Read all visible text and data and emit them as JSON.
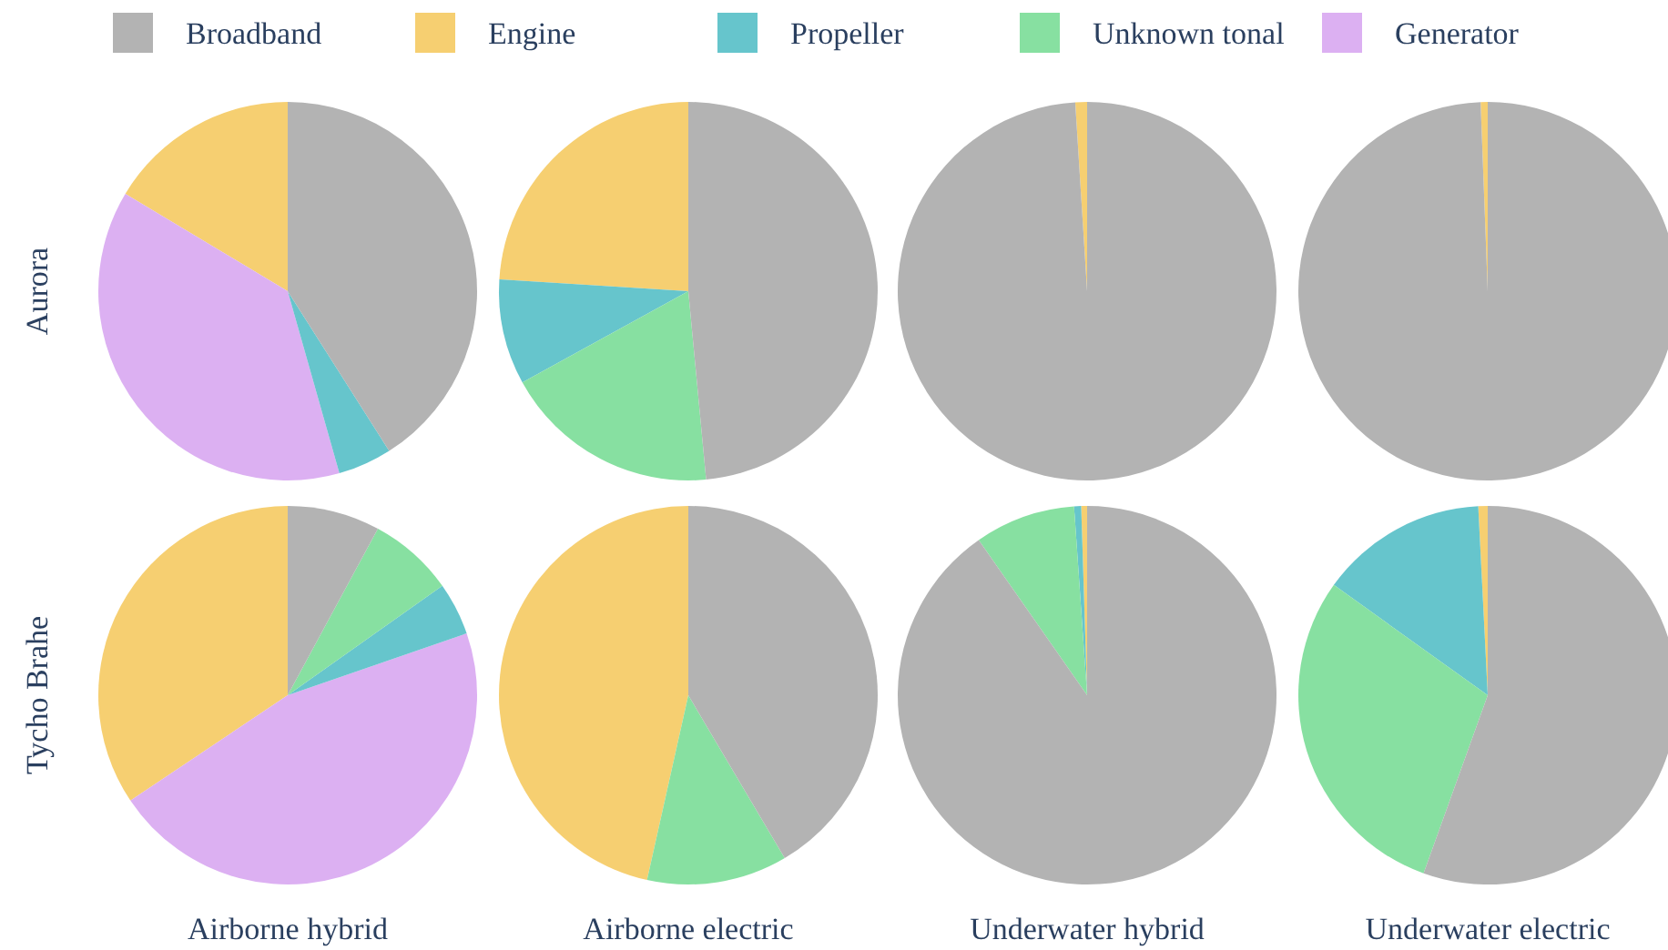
{
  "chart_data": [
    {
      "type": "pie",
      "ylabel": "Aurora",
      "legend": "top",
      "categories": [
        "Broadband",
        "Engine",
        "Propeller",
        "Unknown tonal",
        "Generator"
      ],
      "colors": [
        "#b3b3b3",
        "#f6cf71",
        "#66c5cc",
        "#87e0a1",
        "#dcb0f2"
      ],
      "values": [
        41,
        16.4,
        4.6,
        0,
        38
      ]
    },
    {
      "type": "pie",
      "categories": [
        null,
        null,
        null,
        null,
        null
      ],
      "colors": [
        "#b3b3b3",
        "#f6cf71",
        "#66c5cc",
        "#87e0a1",
        "#dcb0f2"
      ],
      "values": [
        48.5,
        24,
        9,
        18.5,
        0
      ]
    },
    {
      "type": "pie",
      "categories": [
        null,
        null,
        null,
        null,
        null
      ],
      "colors": [
        "#b3b3b3",
        "#f6cf71",
        "#66c5cc",
        "#87e0a1",
        "#dcb0f2"
      ],
      "values": [
        99,
        1,
        0,
        0,
        0
      ]
    },
    {
      "type": "pie",
      "categories": [
        null,
        null,
        null,
        null,
        null
      ],
      "colors": [
        "#b3b3b3",
        "#f6cf71",
        "#66c5cc",
        "#87e0a1",
        "#dcb0f2"
      ],
      "values": [
        99.4,
        0.6,
        0,
        0,
        0
      ]
    },
    {
      "type": "pie",
      "ylabel": "Tycho Brahe",
      "xlabel": "Airborne hybrid",
      "categories": [
        null,
        null,
        null,
        null,
        null
      ],
      "colors": [
        "#b3b3b3",
        "#f6cf71",
        "#66c5cc",
        "#87e0a1",
        "#dcb0f2"
      ],
      "values": [
        7.9,
        34.4,
        4.5,
        7.3,
        45.9
      ]
    },
    {
      "type": "pie",
      "xlabel": "Airborne electric",
      "categories": [
        null,
        null,
        null,
        null,
        null
      ],
      "colors": [
        "#b3b3b3",
        "#f6cf71",
        "#66c5cc",
        "#87e0a1",
        "#dcb0f2"
      ],
      "values": [
        41.5,
        46.5,
        0,
        12,
        0
      ]
    },
    {
      "type": "pie",
      "xlabel": "Underwater hybrid",
      "categories": [
        null,
        null,
        null,
        null,
        null
      ],
      "colors": [
        "#b3b3b3",
        "#f6cf71",
        "#66c5cc",
        "#87e0a1",
        "#dcb0f2"
      ],
      "values": [
        90.3,
        0.5,
        0.6,
        8.6,
        0
      ]
    },
    {
      "type": "pie",
      "xlabel": "Underwater electric",
      "categories": [
        null,
        null,
        null,
        null,
        null
      ],
      "colors": [
        "#b3b3b3",
        "#f6cf71",
        "#66c5cc",
        "#87e0a1",
        "#dcb0f2"
      ],
      "values": [
        55.5,
        0.8,
        14.3,
        29.4,
        0
      ]
    }
  ]
}
